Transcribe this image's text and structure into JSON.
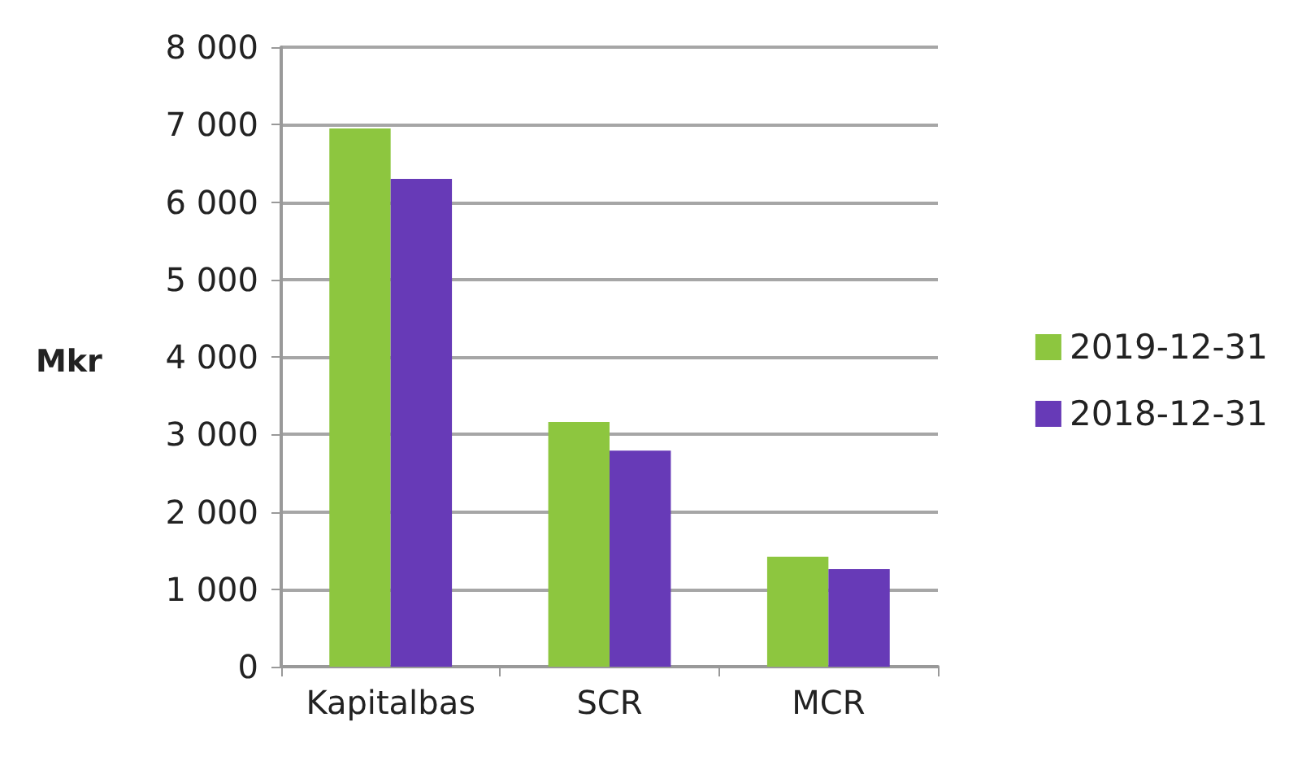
{
  "chart_data": {
    "type": "bar",
    "ylabel": "Mkr",
    "categories": [
      "Kapitalbas",
      "SCR",
      "MCR"
    ],
    "series": [
      {
        "name": "2019-12-31",
        "color": "#8dc63f",
        "values": [
          6950,
          3160,
          1420
        ]
      },
      {
        "name": "2018-12-31",
        "color": "#673ab7",
        "values": [
          6300,
          2790,
          1260
        ]
      }
    ],
    "ylim": [
      0,
      8000
    ],
    "yticks": [
      {
        "value": 0,
        "label": "0"
      },
      {
        "value": 1000,
        "label": "1 000"
      },
      {
        "value": 2000,
        "label": "2 000"
      },
      {
        "value": 3000,
        "label": "3 000"
      },
      {
        "value": 4000,
        "label": "4 000"
      },
      {
        "value": 5000,
        "label": "5 000"
      },
      {
        "value": 6000,
        "label": "6 000"
      },
      {
        "value": 7000,
        "label": "7 000"
      },
      {
        "value": 8000,
        "label": "8 000"
      }
    ],
    "grid": "y",
    "legend": "right"
  }
}
